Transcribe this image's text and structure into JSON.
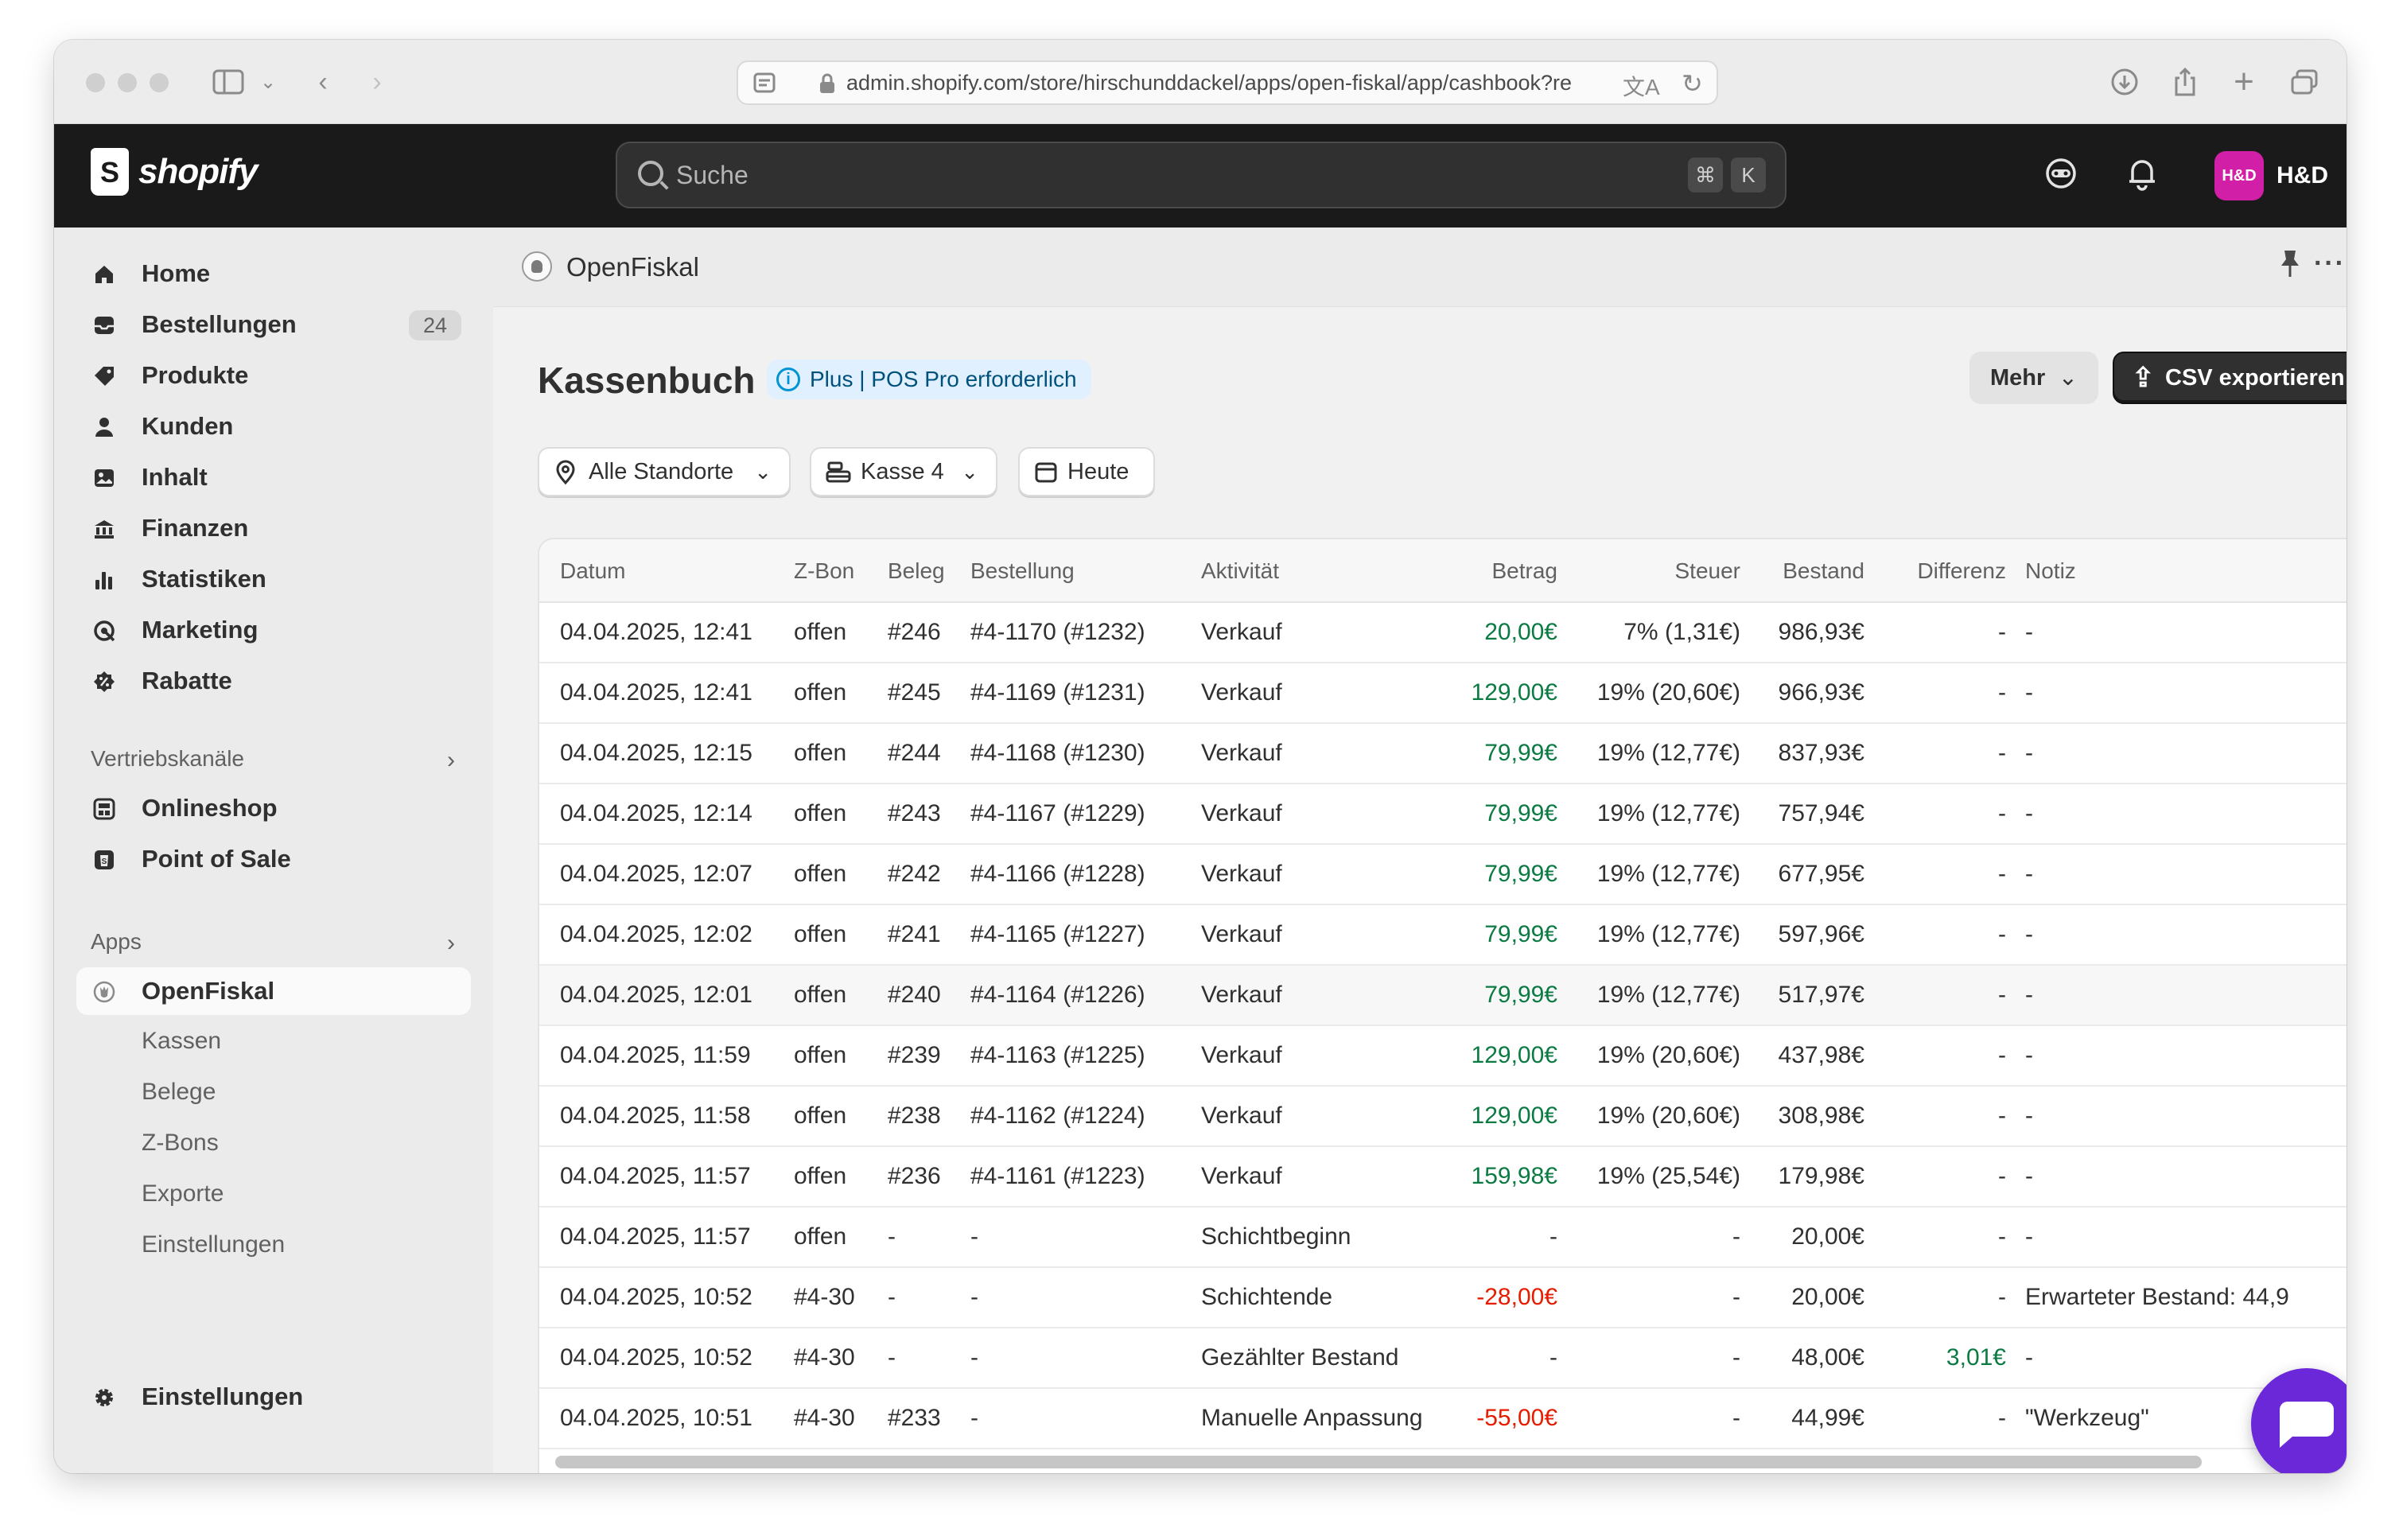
{
  "browser": {
    "url": "admin.shopify.com/store/hirschunddackel/apps/open-fiskal/app/cashbook?re"
  },
  "topbar": {
    "logo_text": "shopify",
    "search_placeholder": "Suche",
    "shortcut_cmd": "⌘",
    "shortcut_key": "K",
    "avatar_initials": "H&D",
    "store_name": "H&D",
    "avatar_color": "#d21fa8"
  },
  "sidebar": {
    "items": [
      {
        "label": "Home",
        "icon": "home-icon"
      },
      {
        "label": "Bestellungen",
        "icon": "inbox-icon",
        "badge": "24"
      },
      {
        "label": "Produkte",
        "icon": "tag-icon"
      },
      {
        "label": "Kunden",
        "icon": "person-icon"
      },
      {
        "label": "Inhalt",
        "icon": "image-icon"
      },
      {
        "label": "Finanzen",
        "icon": "bank-icon"
      },
      {
        "label": "Statistiken",
        "icon": "bar-chart-icon"
      },
      {
        "label": "Marketing",
        "icon": "target-icon"
      },
      {
        "label": "Rabatte",
        "icon": "discount-icon"
      }
    ],
    "sales_channels_label": "Vertriebskanäle",
    "sales_channels": [
      {
        "label": "Onlineshop",
        "icon": "store-icon"
      },
      {
        "label": "Point of Sale",
        "icon": "pos-icon"
      }
    ],
    "apps_label": "Apps",
    "app_active": "OpenFiskal",
    "app_subitems": [
      "Kassen",
      "Belege",
      "Z-Bons",
      "Exporte",
      "Einstellungen"
    ],
    "settings_label": "Einstellungen"
  },
  "app": {
    "name": "OpenFiskal",
    "page_title": "Kassenbuch",
    "plan_badge": "Plus | POS Pro erforderlich",
    "more_button": "Mehr",
    "export_button": "CSV exportieren",
    "filters": {
      "location": "Alle Standorte",
      "register": "Kasse 4",
      "date": "Heute"
    }
  },
  "table": {
    "columns": [
      "Datum",
      "Z-Bon",
      "Beleg",
      "Bestellung",
      "Aktivität",
      "Betrag",
      "Steuer",
      "Bestand",
      "Differenz",
      "Notiz"
    ],
    "rows": [
      {
        "datum": "04.04.2025, 12:41",
        "zbon": "offen",
        "beleg": "#246",
        "bestellung": "#4-1170 (#1232)",
        "aktivitaet": "Verkauf",
        "betrag": "20,00€",
        "betrag_tone": "pos",
        "steuer": "7% (1,31€)",
        "bestand": "986,93€",
        "differenz": "-",
        "differenz_tone": "",
        "notiz": "-"
      },
      {
        "datum": "04.04.2025, 12:41",
        "zbon": "offen",
        "beleg": "#245",
        "bestellung": "#4-1169 (#1231)",
        "aktivitaet": "Verkauf",
        "betrag": "129,00€",
        "betrag_tone": "pos",
        "steuer": "19% (20,60€)",
        "bestand": "966,93€",
        "differenz": "-",
        "differenz_tone": "",
        "notiz": "-"
      },
      {
        "datum": "04.04.2025, 12:15",
        "zbon": "offen",
        "beleg": "#244",
        "bestellung": "#4-1168 (#1230)",
        "aktivitaet": "Verkauf",
        "betrag": "79,99€",
        "betrag_tone": "pos",
        "steuer": "19% (12,77€)",
        "bestand": "837,93€",
        "differenz": "-",
        "differenz_tone": "",
        "notiz": "-"
      },
      {
        "datum": "04.04.2025, 12:14",
        "zbon": "offen",
        "beleg": "#243",
        "bestellung": "#4-1167 (#1229)",
        "aktivitaet": "Verkauf",
        "betrag": "79,99€",
        "betrag_tone": "pos",
        "steuer": "19% (12,77€)",
        "bestand": "757,94€",
        "differenz": "-",
        "differenz_tone": "",
        "notiz": "-"
      },
      {
        "datum": "04.04.2025, 12:07",
        "zbon": "offen",
        "beleg": "#242",
        "bestellung": "#4-1166 (#1228)",
        "aktivitaet": "Verkauf",
        "betrag": "79,99€",
        "betrag_tone": "pos",
        "steuer": "19% (12,77€)",
        "bestand": "677,95€",
        "differenz": "-",
        "differenz_tone": "",
        "notiz": "-"
      },
      {
        "datum": "04.04.2025, 12:02",
        "zbon": "offen",
        "beleg": "#241",
        "bestellung": "#4-1165 (#1227)",
        "aktivitaet": "Verkauf",
        "betrag": "79,99€",
        "betrag_tone": "pos",
        "steuer": "19% (12,77€)",
        "bestand": "597,96€",
        "differenz": "-",
        "differenz_tone": "",
        "notiz": "-"
      },
      {
        "datum": "04.04.2025, 12:01",
        "zbon": "offen",
        "beleg": "#240",
        "bestellung": "#4-1164 (#1226)",
        "aktivitaet": "Verkauf",
        "betrag": "79,99€",
        "betrag_tone": "pos",
        "steuer": "19% (12,77€)",
        "bestand": "517,97€",
        "differenz": "-",
        "differenz_tone": "",
        "notiz": "-"
      },
      {
        "datum": "04.04.2025, 11:59",
        "zbon": "offen",
        "beleg": "#239",
        "bestellung": "#4-1163 (#1225)",
        "aktivitaet": "Verkauf",
        "betrag": "129,00€",
        "betrag_tone": "pos",
        "steuer": "19% (20,60€)",
        "bestand": "437,98€",
        "differenz": "-",
        "differenz_tone": "",
        "notiz": "-"
      },
      {
        "datum": "04.04.2025, 11:58",
        "zbon": "offen",
        "beleg": "#238",
        "bestellung": "#4-1162 (#1224)",
        "aktivitaet": "Verkauf",
        "betrag": "129,00€",
        "betrag_tone": "pos",
        "steuer": "19% (20,60€)",
        "bestand": "308,98€",
        "differenz": "-",
        "differenz_tone": "",
        "notiz": "-"
      },
      {
        "datum": "04.04.2025, 11:57",
        "zbon": "offen",
        "beleg": "#236",
        "bestellung": "#4-1161 (#1223)",
        "aktivitaet": "Verkauf",
        "betrag": "159,98€",
        "betrag_tone": "pos",
        "steuer": "19% (25,54€)",
        "bestand": "179,98€",
        "differenz": "-",
        "differenz_tone": "",
        "notiz": "-"
      },
      {
        "datum": "04.04.2025, 11:57",
        "zbon": "offen",
        "beleg": "-",
        "bestellung": "-",
        "aktivitaet": "Schichtbeginn",
        "betrag": "-",
        "betrag_tone": "",
        "steuer": "-",
        "bestand": "20,00€",
        "differenz": "-",
        "differenz_tone": "",
        "notiz": "-"
      },
      {
        "datum": "04.04.2025, 10:52",
        "zbon": "#4-30",
        "beleg": "-",
        "bestellung": "-",
        "aktivitaet": "Schichtende",
        "betrag": "-28,00€",
        "betrag_tone": "neg",
        "steuer": "-",
        "bestand": "20,00€",
        "differenz": "-",
        "differenz_tone": "",
        "notiz": "Erwarteter Bestand: 44,9"
      },
      {
        "datum": "04.04.2025, 10:52",
        "zbon": "#4-30",
        "beleg": "-",
        "bestellung": "-",
        "aktivitaet": "Gezählter Bestand",
        "betrag": "-",
        "betrag_tone": "",
        "steuer": "-",
        "bestand": "48,00€",
        "differenz": "3,01€",
        "differenz_tone": "pos",
        "notiz": "-"
      },
      {
        "datum": "04.04.2025, 10:51",
        "zbon": "#4-30",
        "beleg": "#233",
        "bestellung": "-",
        "aktivitaet": "Manuelle Anpassung",
        "betrag": "-55,00€",
        "betrag_tone": "neg",
        "steuer": "-",
        "bestand": "44,99€",
        "differenz": "-",
        "differenz_tone": "",
        "notiz": "\"Werkzeug\""
      }
    ]
  },
  "colors": {
    "positive": "#0c7a43",
    "negative": "#e51c00",
    "chat_button": "#6b28d9"
  }
}
